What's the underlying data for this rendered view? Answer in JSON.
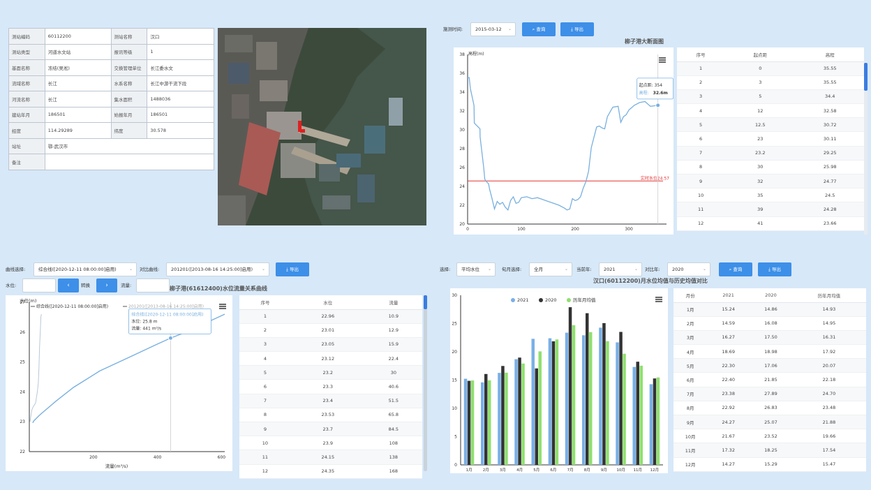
{
  "station_info": [
    [
      "测站编码",
      "60112200",
      "测站名称",
      "汉口"
    ],
    [
      "测站类型",
      "河道水文站",
      "报讯等级",
      "1"
    ],
    [
      "基面名称",
      "冻结(吴淞)",
      "交换管理单位",
      "长江委水文"
    ],
    [
      "流域名称",
      "长江",
      "水系名称",
      "长江中游干流下段"
    ],
    [
      "河流名称",
      "长江",
      "集水面积",
      "1488036"
    ],
    [
      "建站年月",
      "186501",
      "始报年月",
      "186501"
    ],
    [
      "经度",
      "114.29289",
      "纬度",
      "30.578"
    ],
    [
      "站址",
      "鄂-武汉市"
    ],
    [
      "备注",
      ""
    ]
  ],
  "cross_section": {
    "date_label": "施测时间:",
    "date_value": "2015-03-12",
    "query_label": "查询",
    "export_label": "导出",
    "title": "柳子港大断面图",
    "tooltip": {
      "dist_label": "起点距:",
      "dist_value": "354",
      "elev_label": "高程:",
      "elev_value": "32.6m"
    },
    "table_headers": [
      "序号",
      "起点距",
      "高程"
    ],
    "table_rows": [
      [
        "1",
        "0",
        "35.55"
      ],
      [
        "2",
        "3",
        "35.55"
      ],
      [
        "3",
        "5",
        "34.4"
      ],
      [
        "4",
        "12",
        "32.58"
      ],
      [
        "5",
        "12.5",
        "30.72"
      ],
      [
        "6",
        "23",
        "30.11"
      ],
      [
        "7",
        "23.2",
        "29.25"
      ],
      [
        "8",
        "30",
        "25.98"
      ],
      [
        "9",
        "32",
        "24.77"
      ],
      [
        "10",
        "35",
        "24.5"
      ],
      [
        "11",
        "39",
        "24.28"
      ],
      [
        "12",
        "41",
        "23.66"
      ]
    ]
  },
  "rating_curve": {
    "curve_label": "曲线选择:",
    "curve_value": "综合线([2020-12-11 08:00:00]启用)",
    "compare_label": "对比曲线:",
    "compare_value": "201201([2013-08-16 14:25:00]启用)",
    "export_label": "导出",
    "level_label": "水位:",
    "convert_label": "转换",
    "flow_label": "流量:",
    "prev_icon": "‹",
    "next_icon": "›",
    "title": "柳子港(61612400)水位流量关系曲线",
    "legend1": "综合线([2020-12-11 08:00:00]启用)",
    "legend2": "201201([2013-08-16 14:25:00]启用)",
    "tooltip": {
      "head": "综合线([2020-12-11 08:00:00]启用)",
      "level": "水位: 25.8 m",
      "flow": "流量: 441 m³/s"
    },
    "table_headers": [
      "序号",
      "水位",
      "流量"
    ],
    "table_rows": [
      [
        "1",
        "22.96",
        "10.9"
      ],
      [
        "2",
        "23.01",
        "12.9"
      ],
      [
        "3",
        "23.05",
        "15.9"
      ],
      [
        "4",
        "23.12",
        "22.4"
      ],
      [
        "5",
        "23.2",
        "30"
      ],
      [
        "6",
        "23.3",
        "40.6"
      ],
      [
        "7",
        "23.4",
        "51.5"
      ],
      [
        "8",
        "23.53",
        "65.8"
      ],
      [
        "9",
        "23.7",
        "84.5"
      ],
      [
        "10",
        "23.9",
        "108"
      ],
      [
        "11",
        "24.15",
        "138"
      ],
      [
        "12",
        "24.35",
        "168"
      ]
    ]
  },
  "monthly": {
    "select_label": "选择:",
    "select_value": "平均水位",
    "month_label": "旬月选择:",
    "month_value": "全月",
    "cur_year_label": "当前年:",
    "cur_year_value": "2021",
    "cmp_year_label": "对比年:",
    "cmp_year_value": "2020",
    "query_label": "查询",
    "export_label": "导出",
    "title": "汉口(60112200)月水位均值与历史均值对比",
    "table_headers": [
      "月份",
      "2021",
      "2020",
      "历年月均值"
    ],
    "table_rows": [
      [
        "1月",
        "15.24",
        "14.86",
        "14.93"
      ],
      [
        "2月",
        "14.59",
        "16.08",
        "14.95"
      ],
      [
        "3月",
        "16.27",
        "17.50",
        "16.31"
      ],
      [
        "4月",
        "18.69",
        "18.98",
        "17.92"
      ],
      [
        "5月",
        "22.30",
        "17.06",
        "20.07"
      ],
      [
        "6月",
        "22.40",
        "21.85",
        "22.18"
      ],
      [
        "7月",
        "23.38",
        "27.89",
        "24.70"
      ],
      [
        "8月",
        "22.92",
        "26.83",
        "23.48"
      ],
      [
        "9月",
        "24.27",
        "25.07",
        "21.88"
      ],
      [
        "10月",
        "21.67",
        "23.52",
        "19.66"
      ],
      [
        "11月",
        "17.32",
        "18.25",
        "17.54"
      ],
      [
        "12月",
        "14.27",
        "15.29",
        "15.47"
      ]
    ]
  },
  "chart_data": [
    {
      "type": "line",
      "title": "柳子港大断面图",
      "ylabel": "高程(m)",
      "xlim": [
        0,
        370
      ],
      "ylim": [
        20,
        38
      ],
      "x_ticks": [
        0,
        100,
        200,
        300
      ],
      "y_ticks": [
        20,
        22,
        24,
        26,
        28,
        30,
        32,
        34,
        36,
        38
      ],
      "reference_line": {
        "label": "实时水位24.57",
        "value": 24.57,
        "color": "#e53333"
      },
      "series": [
        {
          "x": [
            0,
            3,
            5,
            12,
            12.5,
            23,
            23.2,
            30,
            32,
            35,
            39,
            41,
            45,
            50,
            55,
            60,
            65,
            70,
            75,
            80,
            85,
            90,
            95,
            100,
            110,
            120,
            130,
            140,
            150,
            160,
            170,
            180,
            185,
            190,
            195,
            200,
            205,
            210,
            215,
            220,
            225,
            230,
            235,
            240,
            245,
            250,
            255,
            260,
            270,
            280,
            285,
            290,
            295,
            300,
            310,
            320,
            330,
            340,
            354
          ],
          "y": [
            35.55,
            35.55,
            34.4,
            32.58,
            30.72,
            30.11,
            29.25,
            25.98,
            24.77,
            24.5,
            24.28,
            23.66,
            22.8,
            21.6,
            22.4,
            22.1,
            22.3,
            21.8,
            21.5,
            22.5,
            22.9,
            22.2,
            22.3,
            22.8,
            22.9,
            22.7,
            22.8,
            22.6,
            22.4,
            22.2,
            22.0,
            21.7,
            21.5,
            21.6,
            22.7,
            22.5,
            22.6,
            22.9,
            23.8,
            24.5,
            25.6,
            28.1,
            29.2,
            30.3,
            30.4,
            30.2,
            30.1,
            31.4,
            32.4,
            32.5,
            30.8,
            31.4,
            31.6,
            32.1,
            32.6,
            32.9,
            33.0,
            32.5,
            32.6
          ]
        }
      ],
      "tooltip_point": {
        "x": 354,
        "y": 32.6
      }
    },
    {
      "type": "line",
      "title": "柳子港(61612400)水位流量关系曲线",
      "xlabel": "流量(m³/s)",
      "ylabel": "水位(m)",
      "xlim": [
        0,
        610
      ],
      "ylim": [
        22,
        27
      ],
      "x_ticks": [
        200,
        400,
        600
      ],
      "y_ticks": [
        22,
        23,
        24,
        25,
        26,
        27
      ],
      "series": [
        {
          "name": "综合线([2020-12-11 08:00:00]启用)",
          "x": [
            10.9,
            12.9,
            15.9,
            22.4,
            30,
            40.6,
            51.5,
            65.8,
            84.5,
            108,
            138,
            168,
            220,
            280,
            340,
            400,
            441,
            500,
            560,
            610
          ],
          "y": [
            22.96,
            23.01,
            23.05,
            23.12,
            23.2,
            23.3,
            23.4,
            23.53,
            23.7,
            23.9,
            24.15,
            24.35,
            24.7,
            25.0,
            25.3,
            25.6,
            25.8,
            26.05,
            26.35,
            26.6
          ]
        },
        {
          "name": "201201([2013-08-16 14:25:00]启用)",
          "x": [
            2,
            5,
            8,
            12,
            15,
            18,
            20,
            22,
            25,
            28,
            30,
            32,
            35,
            36,
            38
          ],
          "y": [
            23.0,
            23.2,
            23.4,
            23.5,
            23.55,
            23.6,
            23.65,
            23.8,
            24.0,
            24.3,
            24.8,
            25.5,
            26.2,
            26.5,
            26.6
          ]
        }
      ],
      "tooltip_point": {
        "x": 441,
        "y": 25.8
      }
    },
    {
      "type": "bar",
      "title": "汉口(60112200)月水位均值与历史均值对比",
      "categories": [
        "1月",
        "2月",
        "3月",
        "4月",
        "5月",
        "6月",
        "7月",
        "8月",
        "9月",
        "10月",
        "11月",
        "12月"
      ],
      "ylim": [
        0,
        30
      ],
      "y_ticks": [
        0,
        5,
        10,
        15,
        20,
        25,
        30
      ],
      "series": [
        {
          "name": "2021",
          "color": "#7ab0e6",
          "values": [
            15.24,
            14.59,
            16.27,
            18.69,
            22.3,
            22.4,
            23.38,
            22.92,
            24.27,
            21.67,
            17.32,
            14.27
          ]
        },
        {
          "name": "2020",
          "color": "#333333",
          "values": [
            14.86,
            16.08,
            17.5,
            18.98,
            17.06,
            21.85,
            27.89,
            26.83,
            25.07,
            23.52,
            18.25,
            15.29
          ]
        },
        {
          "name": "历年月均值",
          "color": "#90e070",
          "values": [
            14.93,
            14.95,
            16.31,
            17.92,
            20.07,
            22.18,
            24.7,
            23.48,
            21.88,
            19.66,
            17.54,
            15.47
          ]
        }
      ]
    }
  ]
}
